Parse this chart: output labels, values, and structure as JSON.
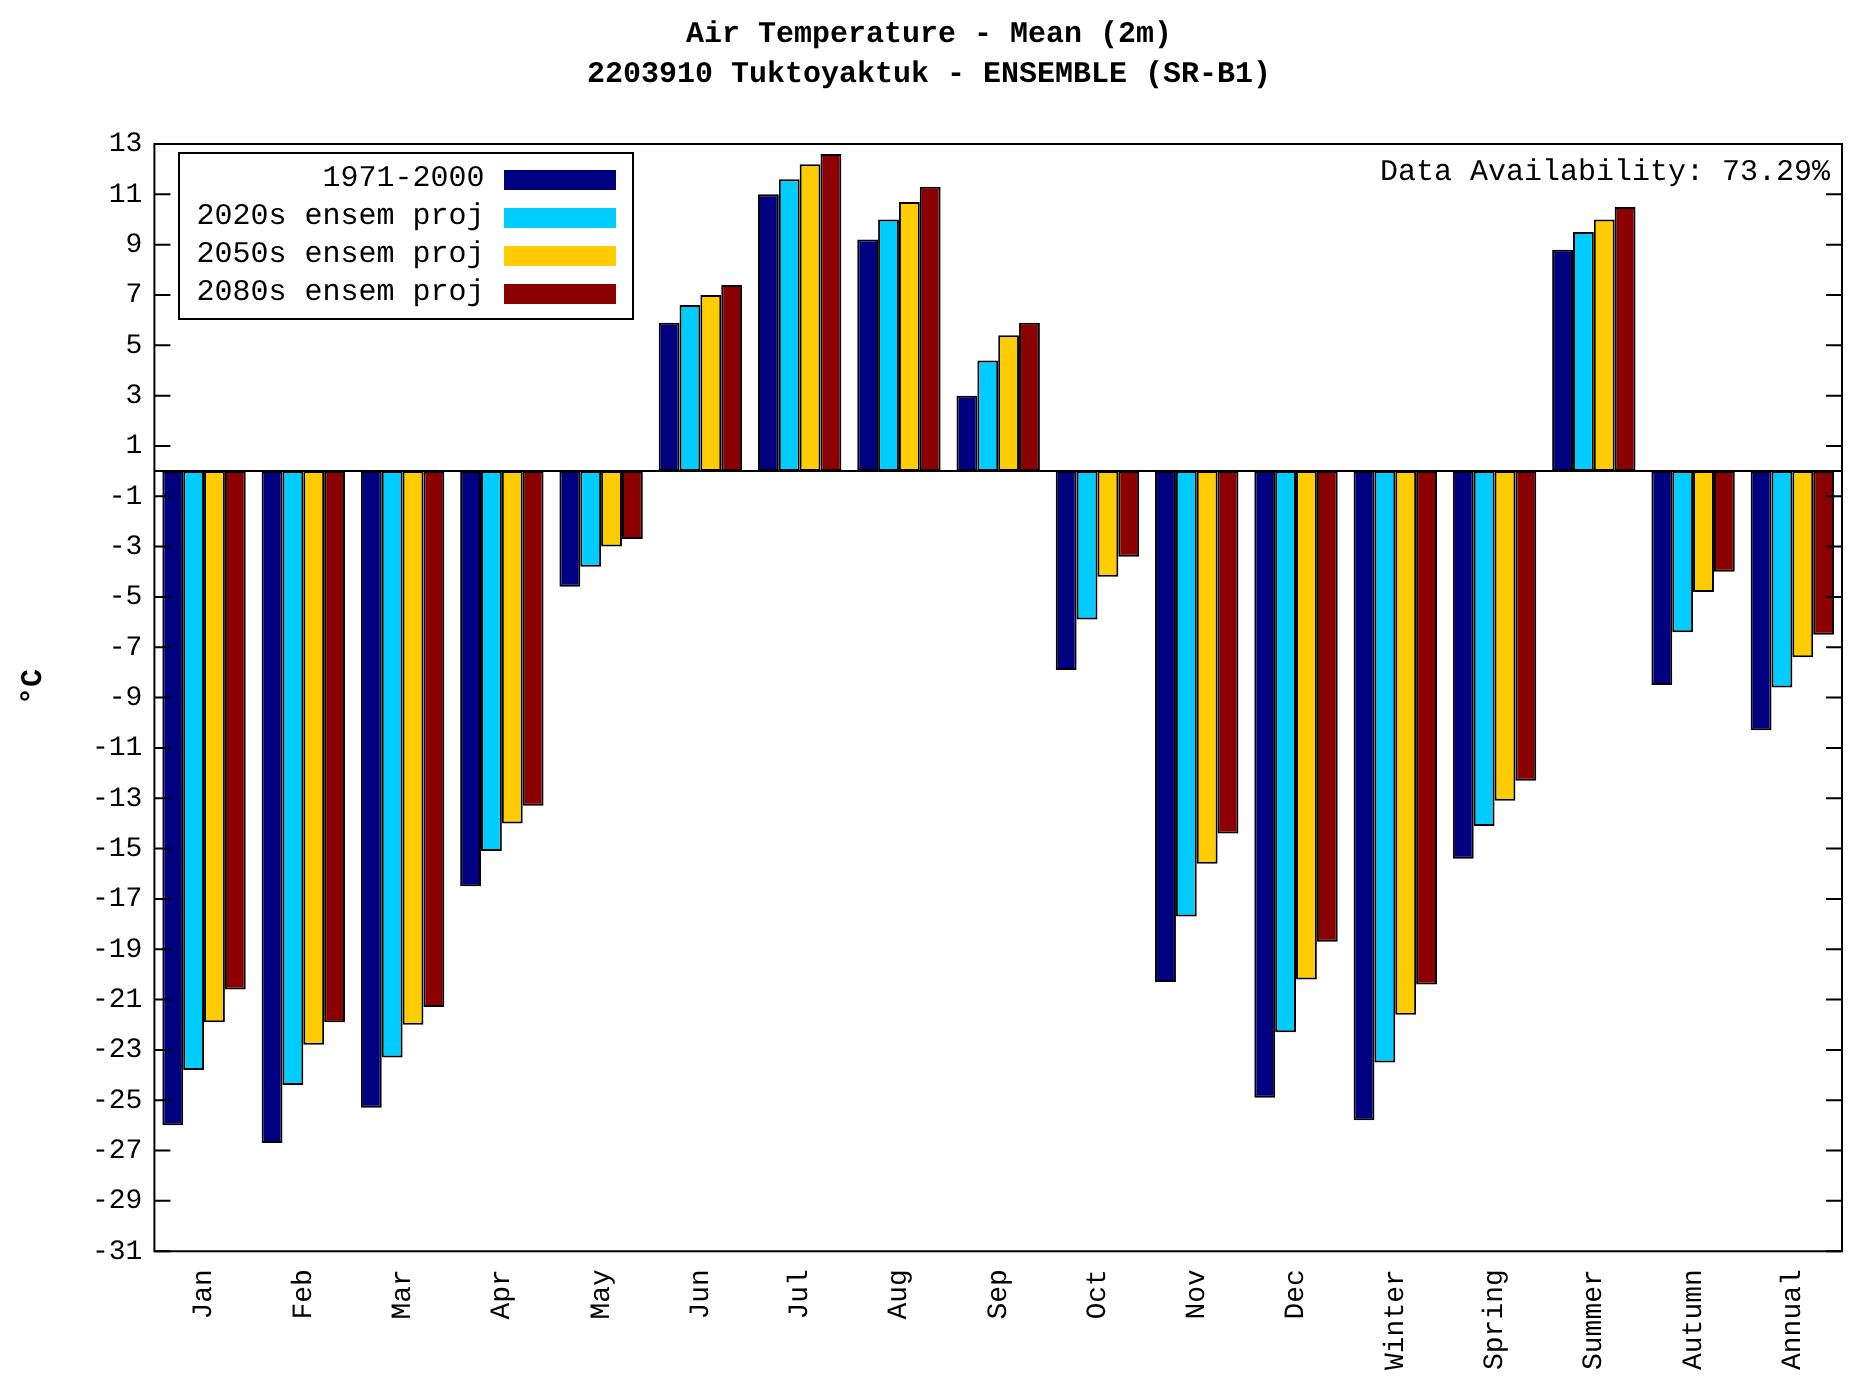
{
  "chart_data": {
    "type": "bar",
    "title": "Air Temperature - Mean (2m)",
    "subtitle": "2203910 Tuktoyaktuk - ENSEMBLE (SR-B1)",
    "ylabel": "°C",
    "categories": [
      "Jan",
      "Feb",
      "Mar",
      "Apr",
      "May",
      "Jun",
      "Jul",
      "Aug",
      "Sep",
      "Oct",
      "Nov",
      "Dec",
      "Winter",
      "Spring",
      "Summer",
      "Autumn",
      "Annual"
    ],
    "series": [
      {
        "name": "1971-2000",
        "color": "#000080",
        "values": [
          -26.0,
          -26.7,
          -25.3,
          -16.5,
          -4.6,
          5.9,
          11.0,
          9.2,
          3.0,
          -7.9,
          -20.3,
          -24.9,
          -25.8,
          -15.4,
          8.8,
          -8.5,
          -10.3
        ]
      },
      {
        "name": "2020s ensem proj",
        "color": "#00ccff",
        "values": [
          -23.8,
          -24.4,
          -23.3,
          -15.1,
          -3.8,
          6.6,
          11.6,
          10.0,
          4.4,
          -5.9,
          -17.7,
          -22.3,
          -23.5,
          -14.1,
          9.5,
          -6.4,
          -8.6
        ]
      },
      {
        "name": "2050s ensem proj",
        "color": "#ffcc00",
        "values": [
          -21.9,
          -22.8,
          -22.0,
          -14.0,
          -3.0,
          7.0,
          12.2,
          10.7,
          5.4,
          -4.2,
          -15.6,
          -20.2,
          -21.6,
          -13.1,
          10.0,
          -4.8,
          -7.4
        ]
      },
      {
        "name": "2080s ensem proj",
        "color": "#8b0000",
        "values": [
          -20.6,
          -21.9,
          -21.3,
          -13.3,
          -2.7,
          7.4,
          12.6,
          11.3,
          5.9,
          -3.4,
          -14.4,
          -18.7,
          -20.4,
          -12.3,
          10.5,
          -4.0,
          -6.5
        ]
      }
    ],
    "ylim": [
      -31,
      13
    ],
    "yticks": [
      -31,
      -29,
      -27,
      -25,
      -23,
      -21,
      -19,
      -17,
      -15,
      -13,
      -11,
      -9,
      -7,
      -5,
      -3,
      -1,
      1,
      3,
      5,
      7,
      9,
      11,
      13
    ],
    "ref_lines": [
      {
        "axis": "y",
        "value": 0,
        "color": "#000000"
      }
    ],
    "annotations": [
      "Data Availability: 73.29%"
    ],
    "legend": "top left",
    "grid": false
  }
}
